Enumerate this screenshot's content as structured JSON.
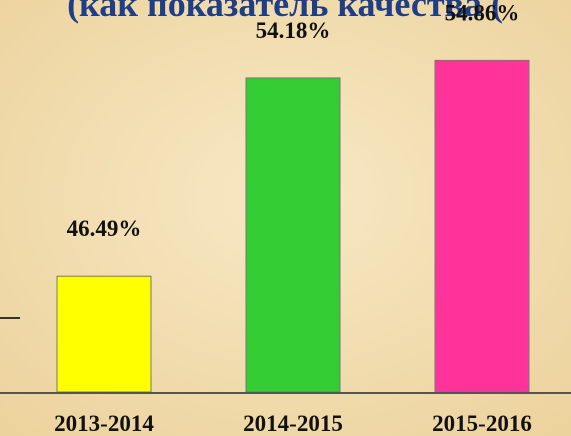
{
  "chart_data": {
    "type": "bar",
    "title": "(как показатель качества (",
    "categories": [
      "2013-2014",
      "2014-2015",
      "2015-2016"
    ],
    "values": [
      46.49,
      54.18,
      54.86
    ],
    "value_labels": [
      "46.49%",
      "54.18%",
      "54.86%"
    ],
    "colors": [
      "#ffff00",
      "#33cc33",
      "#ff3399"
    ],
    "ylim": [
      42,
      56
    ]
  }
}
